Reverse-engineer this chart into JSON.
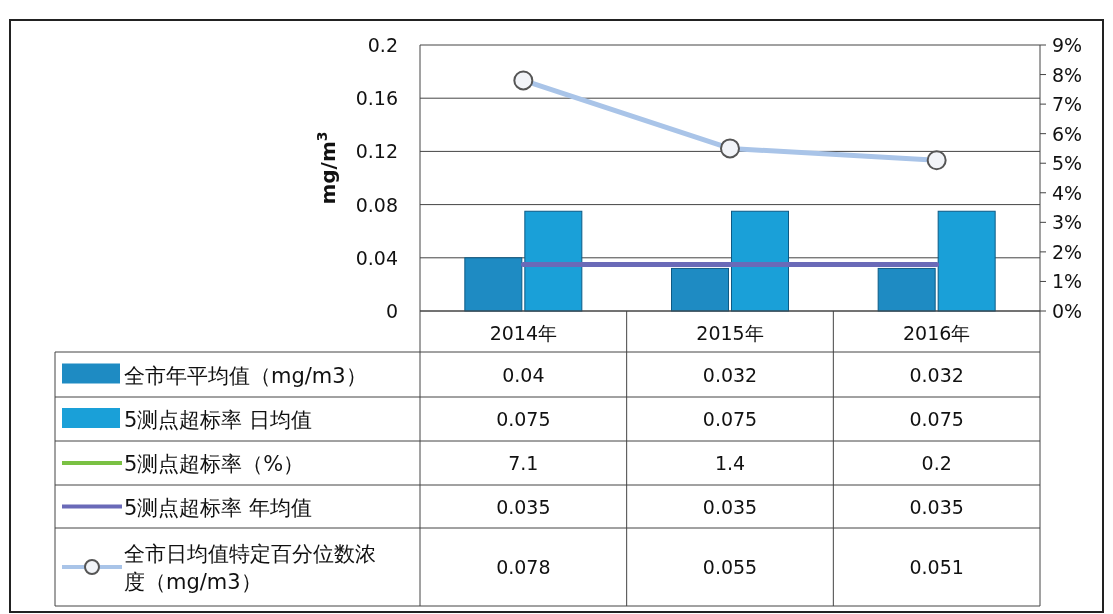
{
  "chart_data": {
    "type": "bar",
    "ylabel": "mg/m$^{3}$",
    "categories": [
      "2014年",
      "2015年",
      "2016年"
    ],
    "ylim": [
      0,
      0.2
    ],
    "yticks": [
      0,
      0.04,
      0.08,
      0.12,
      0.16,
      0.2
    ],
    "y2lim": [
      0,
      0.09
    ],
    "y2ticks": [
      {
        "value": 0,
        "label": "0%"
      },
      {
        "value": 0.01,
        "label": "1%"
      },
      {
        "value": 0.02,
        "label": "2%"
      },
      {
        "value": 0.03,
        "label": "3%"
      },
      {
        "value": 0.04,
        "label": "4%"
      },
      {
        "value": 0.05,
        "label": "5%"
      },
      {
        "value": 0.06,
        "label": "6%"
      },
      {
        "value": 0.07,
        "label": "7%"
      },
      {
        "value": 0.08,
        "label": "8%"
      },
      {
        "value": 0.09,
        "label": "9%"
      }
    ],
    "grid": "y",
    "legend": "bottom",
    "data_labels": true,
    "series": [
      {
        "name": "全市年平均值（mg/m3）",
        "color": "#1e8bc3",
        "values": [
          0.04,
          0.032,
          0.032
        ]
      },
      {
        "name": "5测点超标率 日均值",
        "color": "#1aa0d8",
        "values": [
          0.075,
          0.075,
          0.075
        ]
      },
      {
        "name": "5测点超标率（%）",
        "type": "line",
        "color": "#7ac143",
        "values": [
          null,
          null,
          null
        ],
        "value_labels": [
          "7.1",
          "1.4",
          "0.2"
        ]
      },
      {
        "name": "5测点超标率 年均值",
        "type": "line",
        "color": "#6a6ab8",
        "values": [
          0.035,
          0.035,
          0.035
        ]
      },
      {
        "name": "全市日均值特定百分位数浓度（mg/m3）",
        "type": "line",
        "axis": "y2",
        "marker": "circle",
        "color": "#a9c4e8",
        "values": [
          0.078,
          0.055,
          0.051
        ]
      }
    ]
  }
}
